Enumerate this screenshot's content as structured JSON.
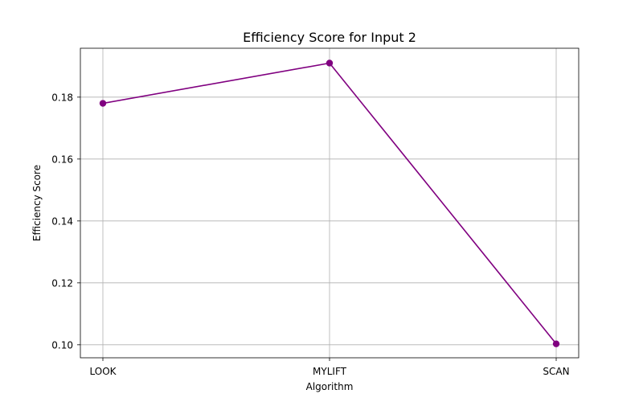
{
  "chart_data": {
    "type": "line",
    "title": "Efficiency Score for Input 2",
    "xlabel": "Algorithm",
    "ylabel": "Efficiency Score",
    "categories": [
      "LOOK",
      "MYLIFT",
      "SCAN"
    ],
    "series": [
      {
        "values": [
          0.178,
          0.191,
          0.1003
        ],
        "color": "#800080",
        "marker": "circle"
      }
    ],
    "ylim": [
      0.0958,
      0.1958
    ],
    "yticks": [
      0.1,
      0.12,
      0.14,
      0.16,
      0.18
    ],
    "ytick_labels": [
      "0.10",
      "0.12",
      "0.14",
      "0.16",
      "0.18"
    ],
    "grid": true,
    "legend": "none"
  }
}
